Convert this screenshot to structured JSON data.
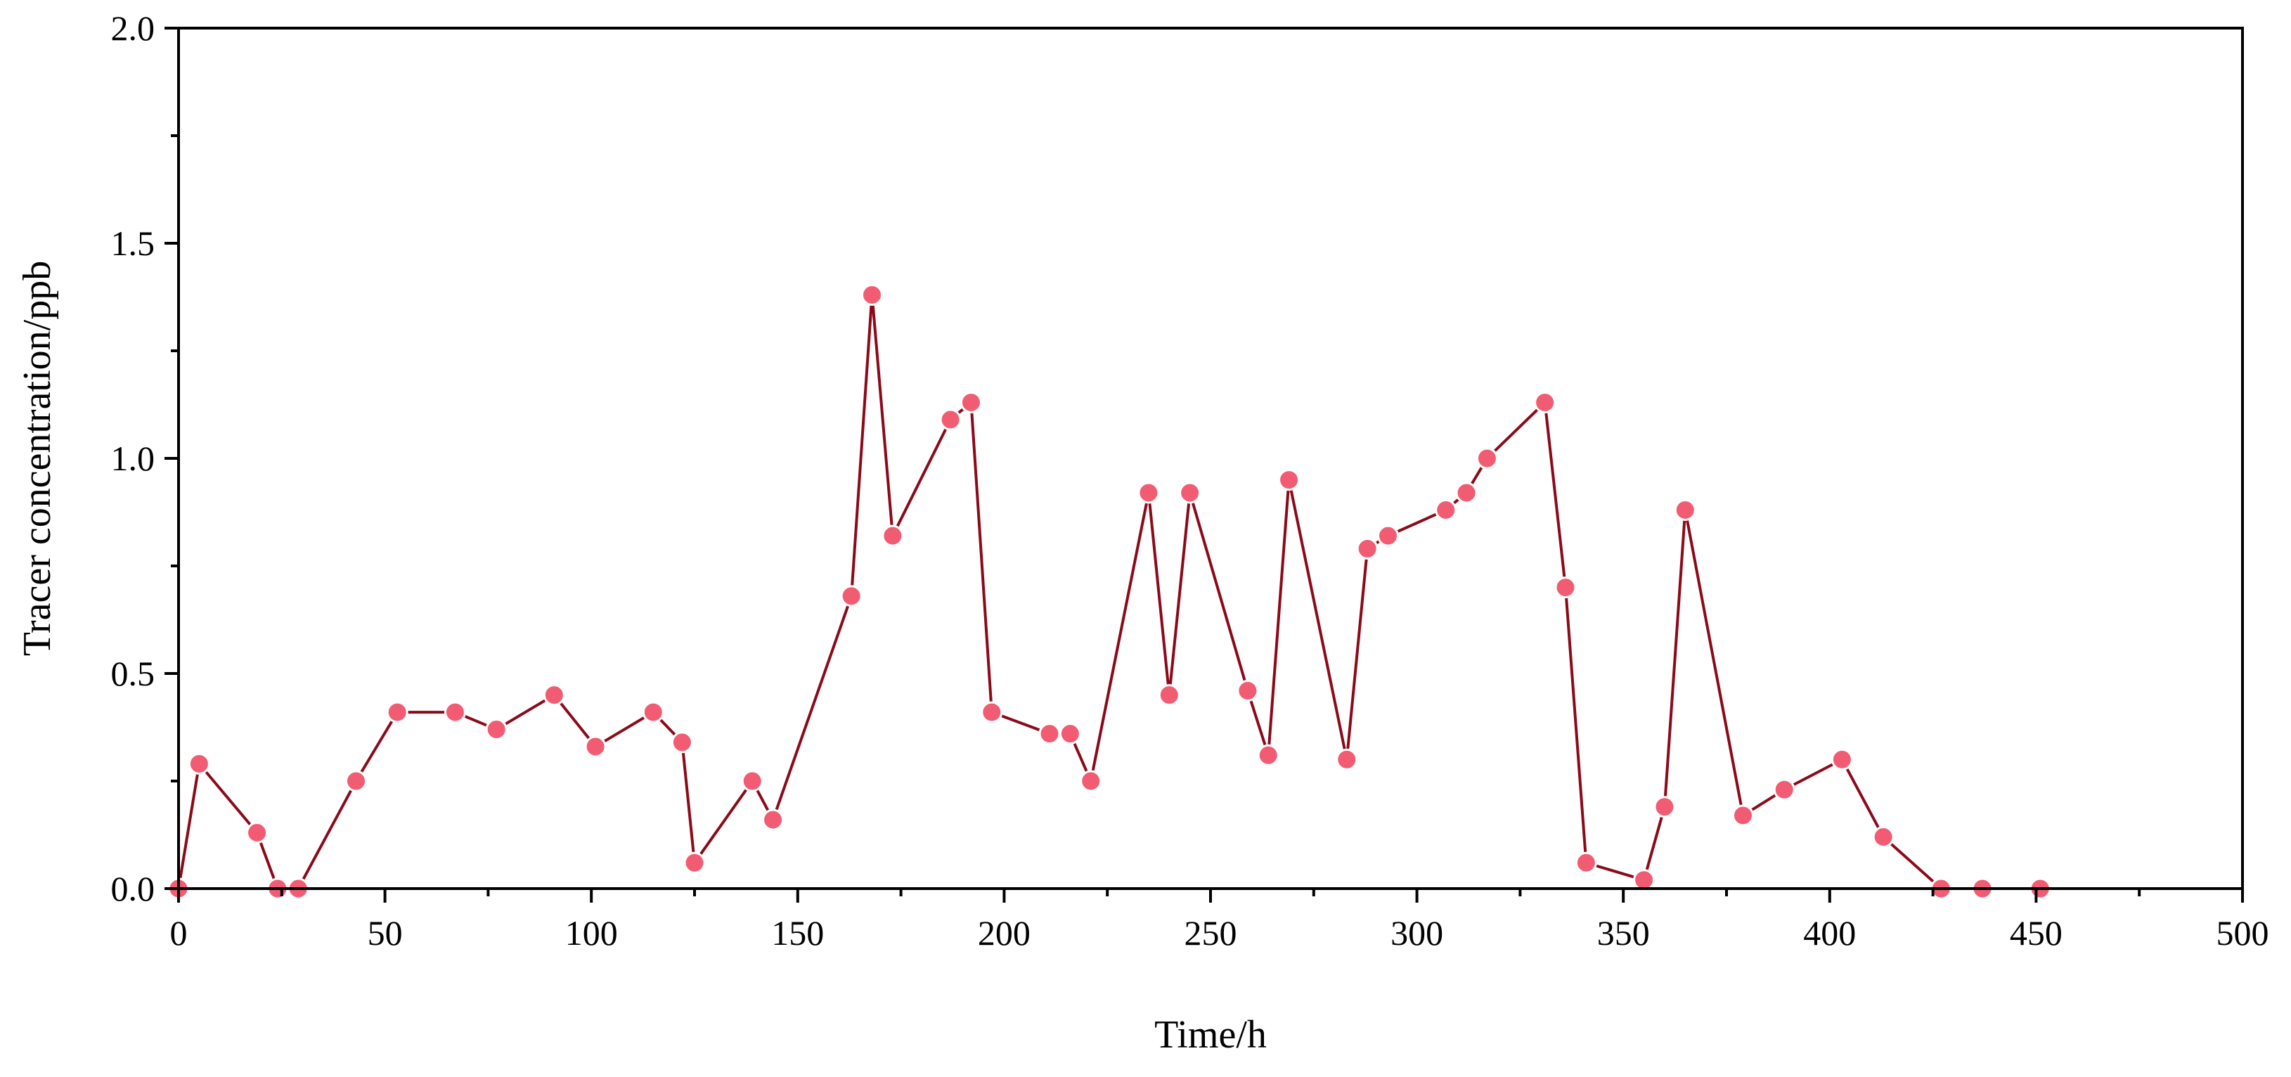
{
  "chart_data": {
    "type": "line",
    "title": "",
    "xlabel": "Time/h",
    "ylabel": "Tracer concentration/ppb",
    "xlim": [
      0,
      500
    ],
    "ylim": [
      0,
      2.0
    ],
    "x_ticks": [
      0,
      50,
      100,
      150,
      200,
      250,
      300,
      350,
      400,
      450,
      500
    ],
    "x_tick_labels": [
      "0",
      "50",
      "100",
      "150",
      "200",
      "250",
      "300",
      "350",
      "400",
      "450",
      "500"
    ],
    "y_ticks": [
      0,
      0.5,
      1.0,
      1.5,
      2.0
    ],
    "y_tick_labels": [
      "0.0",
      "0.5",
      "1.0",
      "1.5",
      "2.0"
    ],
    "grid": false,
    "legend": false,
    "line_color": "#8b0a1a",
    "marker_color": "#f25c73",
    "series": [
      {
        "x": [
          0,
          5,
          19,
          24,
          29,
          43,
          53,
          67,
          77,
          91,
          101,
          115,
          122,
          125,
          139,
          144,
          163,
          168,
          173,
          187,
          192,
          197,
          211,
          216,
          221,
          235,
          240,
          245,
          259,
          264,
          269,
          283,
          288,
          293,
          307,
          312,
          317,
          331,
          336,
          341,
          355,
          360,
          365,
          379,
          389,
          403,
          413,
          427,
          437,
          451
        ],
        "y": [
          0.0,
          0.29,
          0.13,
          0.0,
          0.0,
          0.25,
          0.41,
          0.41,
          0.37,
          0.45,
          0.33,
          0.41,
          0.34,
          0.06,
          0.25,
          0.16,
          0.68,
          1.38,
          0.82,
          1.09,
          1.13,
          0.41,
          0.36,
          0.36,
          0.25,
          0.92,
          0.45,
          0.92,
          0.46,
          0.31,
          0.95,
          0.3,
          0.79,
          0.82,
          0.88,
          0.92,
          1.0,
          1.13,
          0.7,
          0.06,
          0.02,
          0.19,
          0.88,
          0.17,
          0.23,
          0.3,
          0.12,
          0.0,
          0.0,
          0.0
        ]
      }
    ]
  }
}
